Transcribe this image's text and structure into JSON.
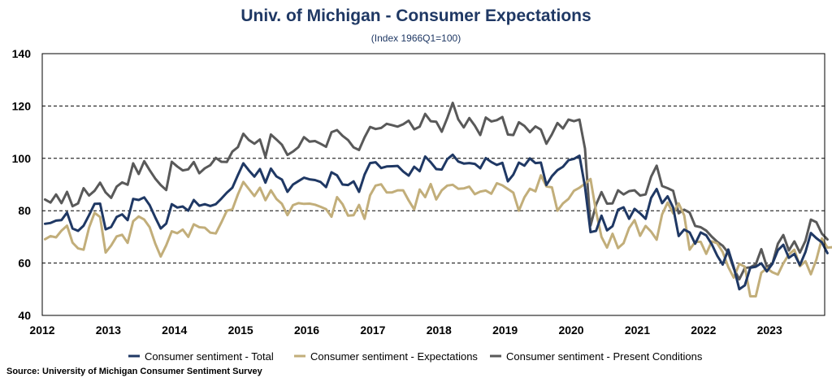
{
  "chart_data": {
    "type": "line",
    "title": "Univ. of Michigan - Consumer Expectations",
    "subtitle": "(Index 1966Q1=100)",
    "source": "Source: University of Michigan Consumer Sentiment Survey",
    "x_start": "2012-01",
    "x_end": "2023-10",
    "xticks": [
      "2012",
      "2013",
      "2014",
      "2015",
      "2016",
      "2017",
      "2018",
      "2019",
      "2020",
      "2021",
      "2022",
      "2023"
    ],
    "ylim": [
      40,
      140
    ],
    "yticks": [
      40,
      60,
      80,
      100,
      120,
      140
    ],
    "grid": true,
    "legend_position": "bottom",
    "series": [
      {
        "name": "Consumer sentiment - Total",
        "color": "#1f3864",
        "values": [
          75.0,
          75.3,
          76.2,
          76.4,
          79.3,
          73.2,
          72.3,
          74.3,
          78.3,
          82.6,
          82.7,
          72.9,
          73.8,
          77.6,
          78.6,
          76.4,
          84.5,
          84.1,
          85.1,
          82.1,
          77.5,
          73.2,
          75.1,
          82.5,
          81.2,
          81.6,
          80.0,
          84.1,
          81.9,
          82.5,
          81.8,
          82.5,
          84.6,
          86.9,
          88.8,
          93.6,
          98.1,
          95.4,
          93.0,
          95.9,
          90.7,
          96.1,
          93.1,
          91.9,
          87.2,
          90.0,
          91.3,
          92.6,
          92.0,
          91.7,
          91.0,
          89.0,
          94.7,
          93.5,
          90.0,
          89.8,
          91.2,
          87.2,
          93.8,
          98.2,
          98.5,
          96.3,
          96.9,
          97.0,
          97.1,
          95.0,
          93.4,
          96.8,
          95.1,
          100.7,
          98.5,
          95.9,
          95.7,
          99.7,
          101.4,
          98.8,
          98.0,
          98.2,
          97.9,
          96.2,
          100.1,
          98.6,
          97.5,
          98.3,
          91.2,
          93.8,
          98.4,
          97.2,
          100.0,
          98.2,
          98.4,
          89.8,
          93.2,
          95.5,
          96.8,
          99.3,
          99.8,
          101.0,
          89.1,
          71.8,
          72.3,
          78.1,
          72.5,
          74.1,
          80.4,
          81.3,
          76.9,
          80.7,
          79.0,
          76.9,
          84.9,
          88.3,
          82.9,
          85.5,
          81.2,
          70.3,
          72.8,
          71.7,
          67.4,
          71.7,
          70.6,
          67.2,
          62.8,
          59.4,
          65.2,
          58.4,
          50.0,
          51.5,
          58.2,
          58.6,
          59.9,
          56.8,
          59.7,
          64.9,
          67.0,
          62.0,
          63.5,
          59.2,
          64.2,
          71.5,
          69.5,
          67.9,
          63.8
        ]
      },
      {
        "name": "Consumer sentiment - Expectations",
        "color": "#c2ae7a",
        "values": [
          69.1,
          70.3,
          69.8,
          72.4,
          74.3,
          67.8,
          65.6,
          65.1,
          73.5,
          79.2,
          77.6,
          64.0,
          66.7,
          70.2,
          70.8,
          67.7,
          76.0,
          77.8,
          76.6,
          73.7,
          67.5,
          62.5,
          66.8,
          72.1,
          71.4,
          72.8,
          70.0,
          74.8,
          73.7,
          73.5,
          71.6,
          71.3,
          75.5,
          80.0,
          80.5,
          86.2,
          91.0,
          88.3,
          85.6,
          88.8,
          84.0,
          87.8,
          84.5,
          82.6,
          78.3,
          82.1,
          82.9,
          82.6,
          82.7,
          82.3,
          81.5,
          80.6,
          77.7,
          85.2,
          82.5,
          78.1,
          78.3,
          82.2,
          76.9,
          85.9,
          89.6,
          90.1,
          87.0,
          87.0,
          87.8,
          87.8,
          83.9,
          80.5,
          88.1,
          85.2,
          90.2,
          84.3,
          87.8,
          89.6,
          89.9,
          88.4,
          88.5,
          89.2,
          86.3,
          87.3,
          87.7,
          86.5,
          90.5,
          89.7,
          88.3,
          86.9,
          80.0,
          85.1,
          88.4,
          87.4,
          93.5,
          89.3,
          88.9,
          80.0,
          82.8,
          84.5,
          87.6,
          88.8,
          90.3,
          92.1,
          79.7,
          70.0,
          65.9,
          71.2,
          65.7,
          67.6,
          73.4,
          76.4,
          70.4,
          74.2,
          72.0,
          68.9,
          78.6,
          83.1,
          79.0,
          82.8,
          78.2,
          65.1,
          68.1,
          68.1,
          63.5,
          68.3,
          67.5,
          64.2,
          58.5,
          54.4,
          59.7,
          58.6,
          47.3,
          47.3,
          56.3,
          58.0,
          56.5,
          55.6,
          59.9,
          63.3,
          65.1,
          58.8,
          60.7,
          55.7,
          61.3,
          69.4,
          65.9,
          66.1,
          61.4
        ]
      },
      {
        "name": "Consumer sentiment - Present Conditions",
        "color": "#595959",
        "values": [
          84.3,
          83.1,
          86.2,
          82.9,
          87.2,
          81.7,
          82.8,
          88.6,
          85.8,
          87.6,
          90.7,
          87.0,
          84.9,
          89.2,
          90.8,
          89.9,
          98.1,
          94.0,
          98.9,
          95.5,
          92.3,
          89.8,
          87.9,
          98.7,
          96.9,
          95.4,
          95.8,
          98.6,
          94.3,
          96.2,
          97.4,
          100.2,
          98.7,
          98.6,
          102.6,
          104.3,
          109.4,
          107.0,
          105.6,
          107.2,
          100.6,
          109.1,
          107.2,
          105.2,
          101.3,
          102.6,
          104.3,
          108.1,
          106.4,
          106.6,
          105.6,
          104.4,
          110.0,
          110.8,
          108.6,
          107.0,
          104.2,
          103.2,
          108.0,
          112.0,
          111.2,
          111.6,
          113.2,
          112.7,
          112.1,
          113.0,
          114.4,
          111.1,
          112.1,
          117.0,
          114.2,
          114.0,
          110.2,
          115.4,
          121.2,
          114.9,
          111.8,
          115.4,
          112.5,
          108.9,
          115.6,
          114.1,
          114.6,
          115.8,
          109.1,
          108.9,
          113.8,
          112.4,
          110.0,
          112.2,
          111.0,
          105.6,
          109.2,
          113.5,
          111.4,
          114.8,
          114.2,
          114.8,
          103.7,
          74.3,
          82.3,
          87.1,
          82.7,
          82.8,
          87.8,
          86.2,
          87.5,
          87.8,
          85.8,
          86.2,
          93.0,
          97.2,
          89.4,
          88.6,
          87.6,
          79.0,
          80.4,
          79.3,
          74.2,
          73.7,
          72.4,
          70.1,
          68.1,
          66.6,
          63.9,
          57.9,
          53.8,
          58.1,
          58.4,
          59.5,
          65.3,
          58.6,
          59.7,
          67.4,
          70.7,
          64.8,
          68.3,
          64.0,
          68.5,
          76.6,
          75.6,
          71.2,
          69.0
        ]
      }
    ]
  }
}
